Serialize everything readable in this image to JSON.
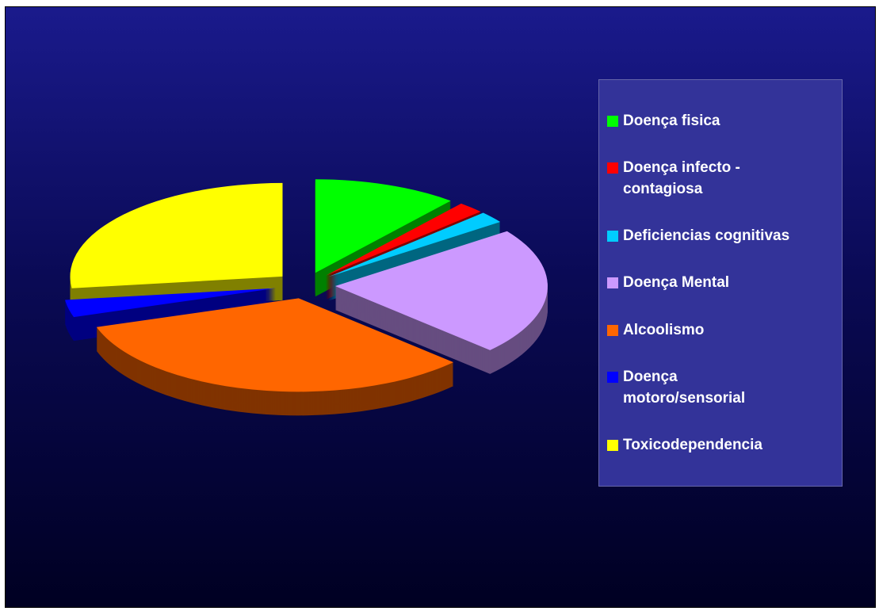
{
  "chart_data": {
    "type": "pie3d",
    "categories": [
      "Doença fisica",
      "Doença infecto -\ncontagiosa",
      "Deficiencias cognitivas",
      "Doença Mental",
      "Alcoolismo",
      "Doença\nmotoro/sensorial",
      "Toxicodependencia"
    ],
    "values": [
      11,
      2,
      2,
      22,
      33,
      3,
      27
    ],
    "colors": [
      "#00ff00",
      "#ff0000",
      "#00ccff",
      "#cc99ff",
      "#ff6600",
      "#0000ff",
      "#ffff00"
    ],
    "legend": "right"
  }
}
